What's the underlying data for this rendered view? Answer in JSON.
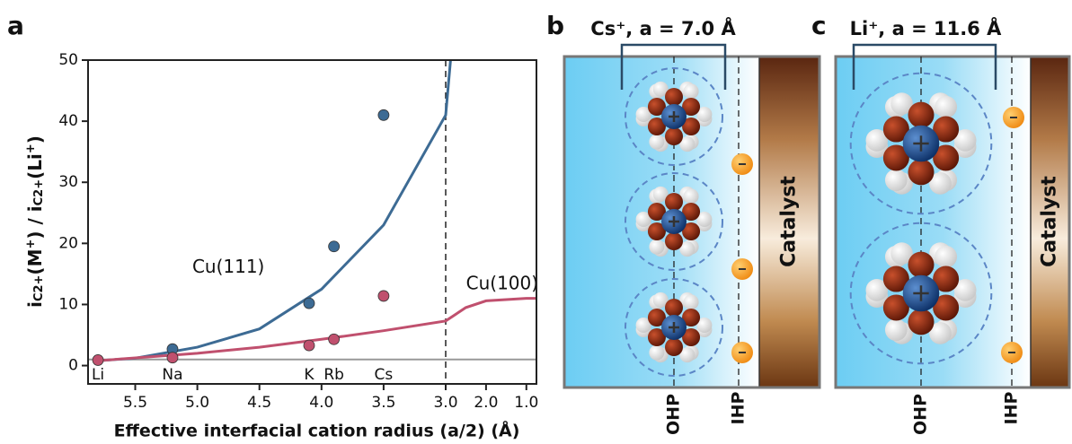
{
  "chart_data": {
    "type": "line",
    "panel_label": "a",
    "xlabel": "Effective interfacial cation radius (a/2) (Å)",
    "ylabel_parts": [
      "i",
      "C2+",
      "(M",
      "+",
      ") / i",
      "C2+",
      "(Li",
      "+",
      ")"
    ],
    "xlim": [
      5.88,
      0.75
    ],
    "xbreak": 3.0,
    "ylim": [
      -3,
      50
    ],
    "xticks": [
      5.5,
      {
        "value": 5,
        "label": "5.0"
      },
      4.5,
      {
        "value": 4,
        "label": "4.0"
      },
      3.5,
      {
        "value": 3,
        "label": "3.0"
      },
      {
        "value": 2,
        "label": "2.0"
      },
      {
        "value": 1,
        "label": "1.0"
      }
    ],
    "yticks": [
      0,
      10,
      20,
      30,
      40,
      50
    ],
    "reference_line": 1,
    "cation_labels": [
      {
        "text": "Li",
        "x": 5.8
      },
      {
        "text": "Na",
        "x": 5.2
      },
      {
        "text": "K",
        "x": 4.1
      },
      {
        "text": "Rb",
        "x": 3.9
      },
      {
        "text": "Cs",
        "x": 3.5
      }
    ],
    "series": [
      {
        "name": "Cu(111)",
        "color": "#3d6b94",
        "kind": "fit",
        "x": [
          5.8,
          5.5,
          5.0,
          4.5,
          4.0,
          3.5,
          3.0,
          2.88
        ],
        "values": [
          0.8,
          1.2,
          3,
          6,
          12.5,
          23,
          41,
          50
        ],
        "label_x": 4.75,
        "label_y": 16
      },
      {
        "name": "Cu(100)",
        "color": "#c0506e",
        "kind": "fit",
        "x": [
          5.8,
          5.0,
          4.5,
          4.0,
          3.5,
          3.0,
          2.5,
          2.0,
          1.0,
          0.75
        ],
        "values": [
          0.8,
          2,
          3,
          4.3,
          5.7,
          7.3,
          9.5,
          10.6,
          11,
          11
        ],
        "label_x": 1.6,
        "label_y": 13.3
      },
      {
        "name": null,
        "color": "#3d6b94",
        "kind": "points",
        "x": [
          5.2,
          4.1,
          3.9,
          3.5
        ],
        "values": [
          2.7,
          10.2,
          19.5,
          41
        ]
      },
      {
        "name": null,
        "color": "#c0506e",
        "kind": "points",
        "x": [
          5.8,
          5.2,
          4.1,
          3.9,
          3.5
        ],
        "values": [
          0.9,
          1.3,
          3.3,
          4.3,
          11.4
        ]
      }
    ]
  },
  "panels": [
    {
      "label": "b",
      "title": "Cs⁺, a = 7.0 Å",
      "catalyst": "Catalyst",
      "ohp": "OHP",
      "ihp": "IHP"
    },
    {
      "label": "c",
      "title": "Li⁺, a = 11.6 Å",
      "catalyst": "Catalyst",
      "ohp": "OHP",
      "ihp": "IHP"
    }
  ]
}
